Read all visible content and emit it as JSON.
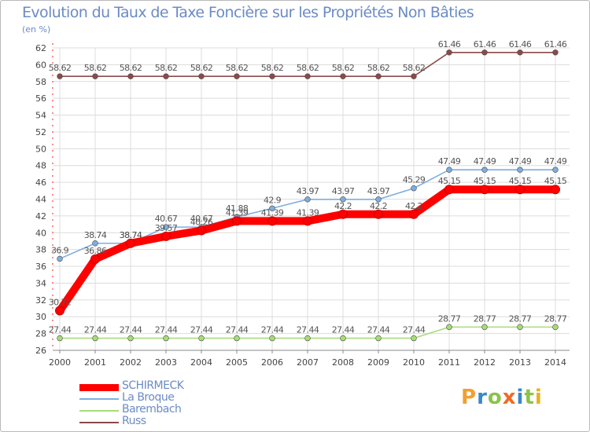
{
  "title": "Evolution du Taux de Taxe Foncière sur les Propriétés Non Bâties",
  "subtitle": "(en %)",
  "logo": {
    "letters": [
      "P",
      "r",
      "o",
      "x",
      "i",
      "t",
      "i"
    ],
    "colors": [
      "#f0a030",
      "#3a86c8",
      "#8bc34a",
      "#f06a20",
      "#3a86c8",
      "#8bc34a",
      "#e9b21c"
    ]
  },
  "chart_data": {
    "type": "line",
    "title": "Evolution du Taux de Taxe Foncière sur les Propriétés Non Bâties",
    "ylabel": "(en %)",
    "xlabel": "",
    "ylim": [
      26,
      62
    ],
    "yticks": [
      "26",
      "28",
      "30",
      "32",
      "34",
      "36",
      "38",
      "40",
      "42",
      "44",
      "46",
      "48",
      "50",
      "52",
      "54",
      "56",
      "58",
      "60",
      "62"
    ],
    "categories": [
      "2000",
      "2001",
      "2002",
      "2003",
      "2004",
      "2005",
      "2006",
      "2007",
      "2008",
      "2009",
      "2010",
      "2011",
      "2012",
      "2013",
      "2014"
    ],
    "grid": true,
    "series": [
      {
        "name": "SCHIRMECK",
        "color": "#ff0000",
        "values": [
          30.72,
          36.86,
          38.74,
          39.57,
          40.26,
          41.39,
          41.39,
          41.39,
          42.2,
          42.2,
          42.2,
          45.15,
          45.15,
          45.15,
          45.15
        ],
        "labels": [
          "30.72",
          "36.86",
          "38.74",
          "39.57",
          "40.26",
          "41.39",
          "41.39",
          "41.39",
          "42.2",
          "42.2",
          "42.2",
          "45.15",
          "45.15",
          "45.15",
          "45.15"
        ]
      },
      {
        "name": "La Broque",
        "color": "#7eaee0",
        "values": [
          36.9,
          38.74,
          38.74,
          40.67,
          40.67,
          41.88,
          42.9,
          43.97,
          43.97,
          43.97,
          45.29,
          47.49,
          47.49,
          47.49,
          47.49
        ],
        "labels": [
          "36.9",
          "38.74",
          "38.74",
          "40.67",
          "40.67",
          "41.88",
          "42.9",
          "43.97",
          "43.97",
          "43.97",
          "45.29",
          "47.49",
          "47.49",
          "47.49",
          "47.49"
        ]
      },
      {
        "name": "Barembach",
        "color": "#a8dc78",
        "values": [
          27.44,
          27.44,
          27.44,
          27.44,
          27.44,
          27.44,
          27.44,
          27.44,
          27.44,
          27.44,
          27.44,
          28.77,
          28.77,
          28.77,
          28.77
        ],
        "labels": [
          "27.44",
          "27.44",
          "27.44",
          "27.44",
          "27.44",
          "27.44",
          "27.44",
          "27.44",
          "27.44",
          "27.44",
          "27.44",
          "28.77",
          "28.77",
          "28.77",
          "28.77"
        ]
      },
      {
        "name": "Russ",
        "color": "#8b4a4a",
        "values": [
          58.62,
          58.62,
          58.62,
          58.62,
          58.62,
          58.62,
          58.62,
          58.62,
          58.62,
          58.62,
          58.62,
          61.46,
          61.46,
          61.46,
          61.46
        ],
        "labels": [
          "58.62",
          "58.62",
          "58.62",
          "58.62",
          "58.62",
          "58.62",
          "58.62",
          "58.62",
          "58.62",
          "58.62",
          "58.62",
          "61.46",
          "61.46",
          "61.46",
          "61.46"
        ]
      }
    ],
    "legend": [
      "SCHIRMECK",
      "La Broque",
      "Barembach",
      "Russ"
    ],
    "legend_position": "bottom-left"
  }
}
